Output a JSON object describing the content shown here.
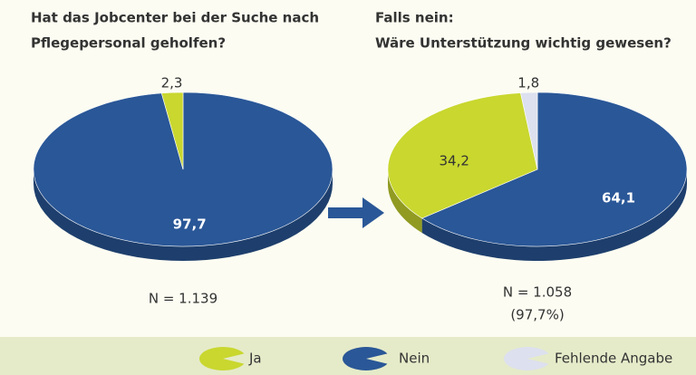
{
  "chart_data": [
    {
      "type": "pie",
      "title": [
        "Hat das Jobcenter bei der Suche nach",
        "Pflegepersonal geholfen?"
      ],
      "categories": [
        "Nein",
        "Ja"
      ],
      "values": [
        97.7,
        2.3
      ],
      "value_labels": [
        "97,7",
        "2,3"
      ],
      "colors": [
        "#2a5797",
        "#c9d72f"
      ],
      "note": [
        "N = 1.139"
      ]
    },
    {
      "type": "pie",
      "title": [
        "Falls nein:",
        "Wäre Unterstützung wichtig gewesen?"
      ],
      "categories": [
        "Nein",
        "Ja",
        "Fehlende Angabe"
      ],
      "values": [
        64.1,
        34.2,
        1.8
      ],
      "value_labels": [
        "64,1",
        "34,2",
        "1,8"
      ],
      "colors": [
        "#2a5797",
        "#c9d72f",
        "#dde0ee"
      ],
      "note": [
        "N = 1.058",
        "(97,7%)"
      ]
    }
  ],
  "legend": [
    {
      "name": "Ja",
      "color": "#c9d72f"
    },
    {
      "name": "Nein",
      "color": "#2a5797"
    },
    {
      "name": "Fehlende Angabe",
      "color": "#dde0ee"
    }
  ]
}
